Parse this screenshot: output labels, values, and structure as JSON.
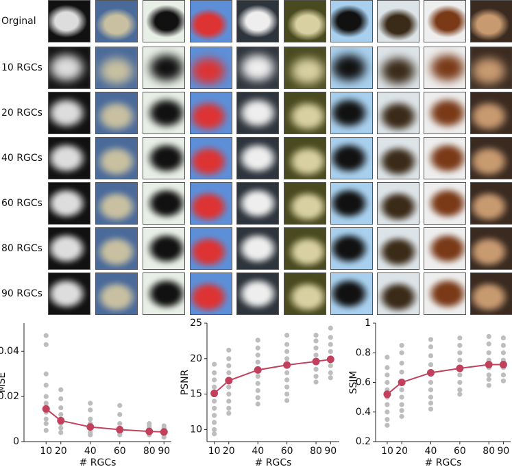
{
  "image_grid": {
    "row_labels": [
      "Orginal",
      "10 RGCs",
      "20 RGCs",
      "40 RGCs",
      "60 RGCs",
      "80 RGCs",
      "90 RGCs"
    ]
  },
  "chart_data": [
    {
      "type": "line",
      "ylabel": "MSE",
      "xlabel": "# RGCs",
      "x": [
        10,
        20,
        40,
        60,
        80,
        90
      ],
      "xlim": [
        -5,
        95
      ],
      "xticks": [
        10,
        20,
        40,
        60,
        80,
        90
      ],
      "ylim": [
        0,
        0.0525
      ],
      "yticks": [
        0,
        0.02,
        0.04
      ],
      "color": "#c1405c",
      "values": [
        0.0145,
        0.0093,
        0.0065,
        0.0053,
        0.0045,
        0.0043
      ],
      "samples_color": "#bdbdbd",
      "samples": [
        [
          0.047,
          0.043,
          0.03,
          0.025,
          0.02,
          0.017,
          0.013,
          0.01,
          0.008,
          0.005
        ],
        [
          0.023,
          0.019,
          0.015,
          0.012,
          0.01,
          0.008,
          0.006,
          0.004
        ],
        [
          0.017,
          0.014,
          0.01,
          0.008,
          0.006,
          0.004,
          0.003
        ],
        [
          0.016,
          0.012,
          0.008,
          0.006,
          0.004,
          0.003
        ],
        [
          0.008,
          0.007,
          0.006,
          0.005,
          0.004,
          0.003
        ],
        [
          0.007,
          0.006,
          0.005,
          0.004,
          0.003,
          0.002
        ]
      ]
    },
    {
      "type": "line",
      "ylabel": "PSNR",
      "xlabel": "# RGCs",
      "x": [
        10,
        20,
        40,
        60,
        80,
        90
      ],
      "xlim": [
        5,
        96
      ],
      "xticks": [
        10,
        20,
        40,
        60,
        80,
        90
      ],
      "ylim": [
        8.3,
        25
      ],
      "yticks": [
        10,
        15,
        20,
        25
      ],
      "color": "#c1405c",
      "values": [
        15.1,
        16.9,
        18.4,
        19.1,
        19.6,
        19.9
      ],
      "samples_color": "#bdbdbd",
      "samples": [
        [
          19.2,
          18,
          17,
          16,
          15,
          14,
          13,
          12,
          11,
          10,
          9.4
        ],
        [
          21.2,
          20,
          19,
          18,
          17,
          16,
          15,
          14,
          13,
          12.3
        ],
        [
          22.6,
          21.5,
          20.5,
          19.5,
          18.5,
          17.5,
          16.5,
          15.5,
          14.5,
          13.6
        ],
        [
          23.3,
          22,
          21,
          20,
          19,
          18,
          17,
          16,
          15,
          14.1
        ],
        [
          23.3,
          22.5,
          21.5,
          20.5,
          19.5,
          18.5,
          17.5,
          16.7
        ],
        [
          24.3,
          23,
          22,
          21,
          20,
          19,
          18,
          17.3
        ]
      ]
    },
    {
      "type": "line",
      "ylabel": "SSIM",
      "xlabel": "# RGCs",
      "x": [
        10,
        20,
        40,
        60,
        80,
        90
      ],
      "xlim": [
        2,
        95
      ],
      "xticks": [
        10,
        20,
        40,
        60,
        80,
        90
      ],
      "ylim": [
        0.2,
        1
      ],
      "yticks": [
        0.2,
        0.4,
        0.6,
        0.8,
        1
      ],
      "color": "#c1405c",
      "values": [
        0.52,
        0.6,
        0.665,
        0.695,
        0.72,
        0.72
      ],
      "samples_color": "#bdbdbd",
      "samples": [
        [
          0.77,
          0.7,
          0.65,
          0.6,
          0.55,
          0.5,
          0.45,
          0.4,
          0.35,
          0.31
        ],
        [
          0.85,
          0.8,
          0.73,
          0.67,
          0.6,
          0.55,
          0.5,
          0.45,
          0.41,
          0.37
        ],
        [
          0.89,
          0.84,
          0.78,
          0.72,
          0.66,
          0.6,
          0.55,
          0.5,
          0.46,
          0.42
        ],
        [
          0.9,
          0.85,
          0.8,
          0.75,
          0.7,
          0.65,
          0.6,
          0.55,
          0.52
        ],
        [
          0.91,
          0.86,
          0.8,
          0.75,
          0.7,
          0.65,
          0.62,
          0.58
        ],
        [
          0.9,
          0.85,
          0.8,
          0.75,
          0.7,
          0.65,
          0.61
        ]
      ]
    }
  ]
}
